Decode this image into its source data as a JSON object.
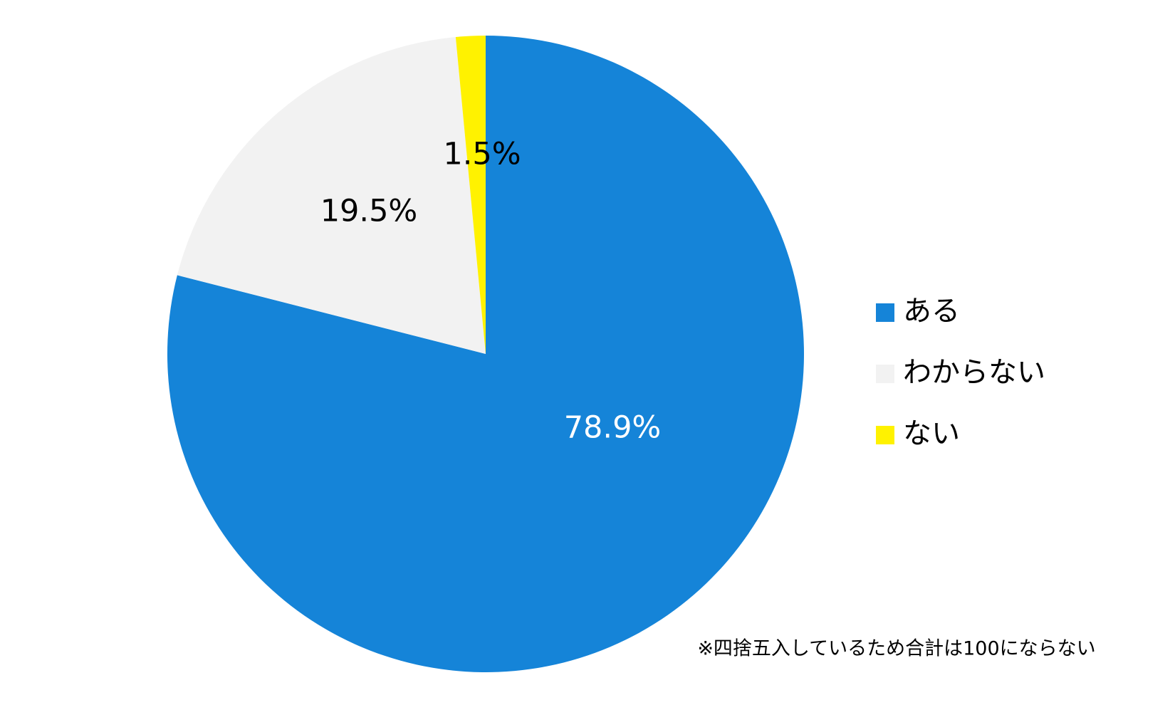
{
  "chart_data": {
    "type": "pie",
    "categories": [
      "ある",
      "わからない",
      "ない"
    ],
    "values": [
      78.9,
      19.5,
      1.5
    ],
    "value_labels": [
      "78.9%",
      "19.5%",
      "1.5%"
    ],
    "colors": [
      "#1584d8",
      "#f2f2f2",
      "#fff200"
    ],
    "legend": "right",
    "note": "※四捨五入しているため合計は100にならない"
  }
}
